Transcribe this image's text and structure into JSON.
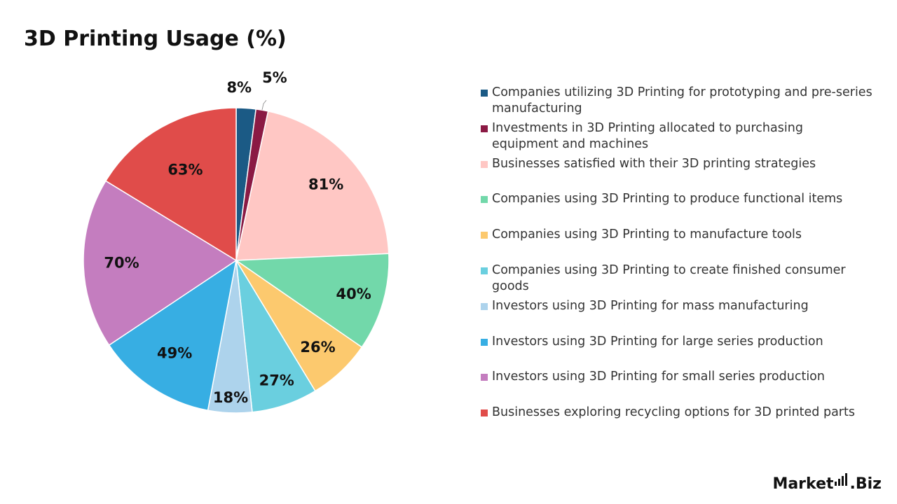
{
  "title": "3D Printing Usage (%)",
  "logo": {
    "text_left": "Market",
    "text_right": ".Biz"
  },
  "chart_data": {
    "type": "pie",
    "title": "3D Printing Usage (%)",
    "legend_position": "right",
    "slices": [
      {
        "label": "Companies utilizing 3D Printing for prototyping and pre-series manufacturing",
        "value": 8,
        "display": "8%",
        "color": "#1B5A85"
      },
      {
        "label": "Investments in 3D Printing allocated to purchasing equipment and machines",
        "value": 5,
        "display": "5%",
        "color": "#8B1A44"
      },
      {
        "label": "Businesses satisfied with their 3D printing strategies",
        "value": 81,
        "display": "81%",
        "color": "#FFC7C4"
      },
      {
        "label": "Companies using 3D Printing to produce functional items",
        "value": 40,
        "display": "40%",
        "color": "#72D8AA"
      },
      {
        "label": "Companies using 3D Printing to manufacture tools",
        "value": 26,
        "display": "26%",
        "color": "#FCC96E"
      },
      {
        "label": "Companies using 3D Printing to create finished consumer goods",
        "value": 27,
        "display": "27%",
        "color": "#6ACFDF"
      },
      {
        "label": "Investors using 3D Printing for mass manufacturing",
        "value": 18,
        "display": "18%",
        "color": "#ADD3EC"
      },
      {
        "label": "Investors using 3D Printing for large series production",
        "value": 49,
        "display": "49%",
        "color": "#37AEE3"
      },
      {
        "label": "Investors using 3D Printing for small series production",
        "value": 70,
        "display": "70%",
        "color": "#C47DBF"
      },
      {
        "label": "Businesses exploring recycling options for 3D printed parts",
        "value": 63,
        "display": "63%",
        "color": "#E04C4A"
      }
    ]
  }
}
